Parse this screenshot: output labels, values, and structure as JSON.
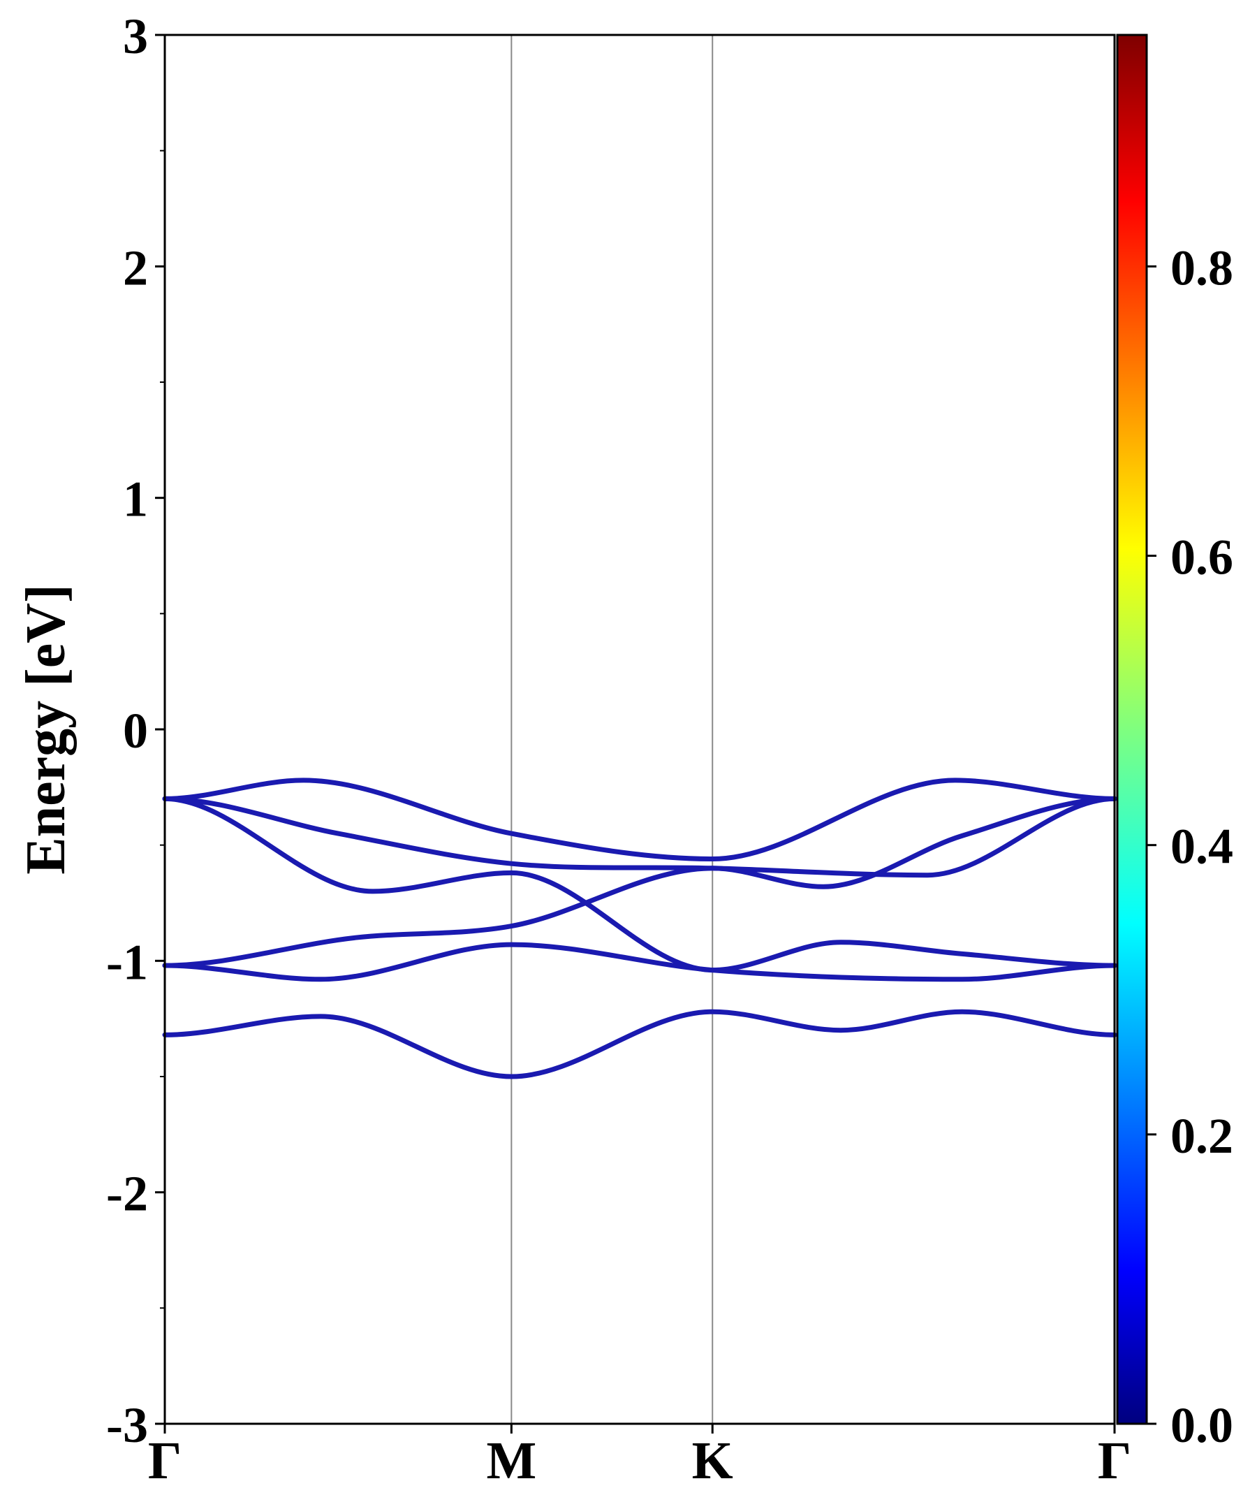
{
  "chart_data": {
    "type": "line",
    "title": "",
    "xlabel": "",
    "ylabel": "Energy [eV]",
    "ylim": [
      -3,
      3
    ],
    "yticks": [
      "3",
      "2",
      "1",
      "0",
      "-1",
      "-2",
      "-3"
    ],
    "y_minor_step": 0.5,
    "kpoints": [
      "Γ",
      "M",
      "K",
      "Γ"
    ],
    "kpoint_positions": [
      0,
      1,
      1.58,
      2.74
    ],
    "grid": false,
    "line_color": "#1a1ab0",
    "colorbar": {
      "range": [
        0.0,
        0.96
      ],
      "ticks": [
        "0.0",
        "0.2",
        "0.4",
        "0.6",
        "0.8"
      ],
      "colormap": "jet"
    },
    "bands": [
      {
        "x": [
          0,
          0.4,
          1,
          1.58,
          2.28,
          2.74
        ],
        "y": [
          -0.3,
          -0.22,
          -0.45,
          -0.56,
          -0.22,
          -0.3
        ]
      },
      {
        "x": [
          0,
          0.5,
          1,
          1.58,
          2.2,
          2.74
        ],
        "y": [
          -0.3,
          -0.45,
          -0.58,
          -0.6,
          -0.63,
          -0.3
        ]
      },
      {
        "x": [
          0,
          0.6,
          1,
          1.58,
          1.95,
          2.3,
          2.74
        ],
        "y": [
          -0.3,
          -0.7,
          -0.62,
          -1.04,
          -0.92,
          -0.97,
          -1.02
        ]
      },
      {
        "x": [
          0,
          0.55,
          1,
          1.58,
          1.9,
          2.3,
          2.74
        ],
        "y": [
          -1.02,
          -0.9,
          -0.85,
          -0.6,
          -0.68,
          -0.46,
          -0.3
        ]
      },
      {
        "x": [
          0,
          0.45,
          1,
          1.58,
          2.3,
          2.74
        ],
        "y": [
          -1.02,
          -1.08,
          -0.93,
          -1.04,
          -1.08,
          -1.02
        ]
      },
      {
        "x": [
          0,
          0.45,
          1,
          1.58,
          1.95,
          2.3,
          2.74
        ],
        "y": [
          -1.32,
          -1.24,
          -1.5,
          -1.22,
          -1.3,
          -1.22,
          -1.32
        ]
      }
    ]
  }
}
